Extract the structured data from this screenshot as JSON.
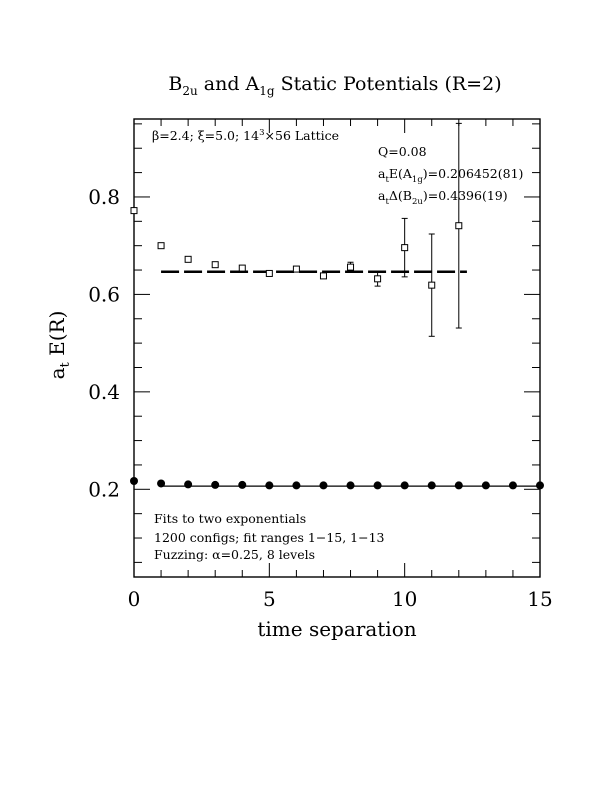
{
  "chart_data": {
    "type": "scatter",
    "title_parts": {
      "b_main": "B",
      "b_sub": "2u",
      "mid": " and A",
      "a_sub": "1g",
      "tail": " Static Potentials (R=2)"
    },
    "xlabel": "time separation",
    "ylabel_parts": {
      "main": "a",
      "sub": "t",
      "tail": " E(R)"
    },
    "xlim": [
      0,
      15
    ],
    "ylim": [
      0.02,
      0.96
    ],
    "x_ticks": [
      0,
      5,
      10,
      15
    ],
    "x_tick_labels": [
      "0",
      "5",
      "10",
      "15"
    ],
    "y_ticks": [
      0.2,
      0.4,
      0.6,
      0.8
    ],
    "y_tick_labels": [
      "0.2",
      "0.4",
      "0.6",
      "0.8"
    ],
    "annotations": {
      "lattice_prefix": "β=2.4; ξ=5.0; 14",
      "lattice_sup": "3",
      "lattice_suffix": "×56 Lattice",
      "q_value": "Q=0.08",
      "energy_a_main": "a",
      "energy_a_sub1": "t",
      "energy_a_mid": "E(A",
      "energy_a_sub2": "1g",
      "energy_a_tail": ")=0.206452(81)",
      "energy_b_main": "a",
      "energy_b_sub1": "t",
      "energy_b_mid": "Δ(B",
      "energy_b_sub2": "2u",
      "energy_b_tail": ")=0.4396(19)",
      "fit_line1": "Fits to two exponentials",
      "fit_line2": "1200 configs; fit ranges 1−15, 1−13",
      "fit_line3": "Fuzzing: α=0.25, 8 levels"
    },
    "series": [
      {
        "marker": "open-square",
        "x": [
          0,
          1,
          2,
          3,
          4,
          5,
          6,
          7,
          8,
          9,
          10,
          11,
          12
        ],
        "y": [
          0.772,
          0.7,
          0.672,
          0.661,
          0.654,
          0.643,
          0.652,
          0.638,
          0.656,
          0.632,
          0.696,
          0.619,
          0.741
        ],
        "err": [
          0.001,
          0.001,
          0.002,
          0.002,
          0.003,
          0.003,
          0.004,
          0.005,
          0.01,
          0.015,
          0.06,
          0.105,
          0.21
        ]
      },
      {
        "marker": "filled-circle",
        "x": [
          0,
          1,
          2,
          3,
          4,
          5,
          6,
          7,
          8,
          9,
          10,
          11,
          12,
          13,
          14,
          15
        ],
        "y": [
          0.217,
          0.212,
          0.21,
          0.209,
          0.209,
          0.208,
          0.208,
          0.208,
          0.208,
          0.208,
          0.208,
          0.208,
          0.208,
          0.208,
          0.208,
          0.208
        ],
        "err": [
          0,
          0,
          0,
          0,
          0,
          0,
          0,
          0,
          0,
          0,
          0,
          0,
          0,
          0,
          0,
          0
        ]
      }
    ],
    "fit_lines": [
      {
        "style": "dashed",
        "x_range": [
          1,
          12.3
        ],
        "y": 0.6465
      },
      {
        "style": "solid",
        "x_range": [
          1,
          15
        ],
        "y": 0.2065
      }
    ]
  }
}
